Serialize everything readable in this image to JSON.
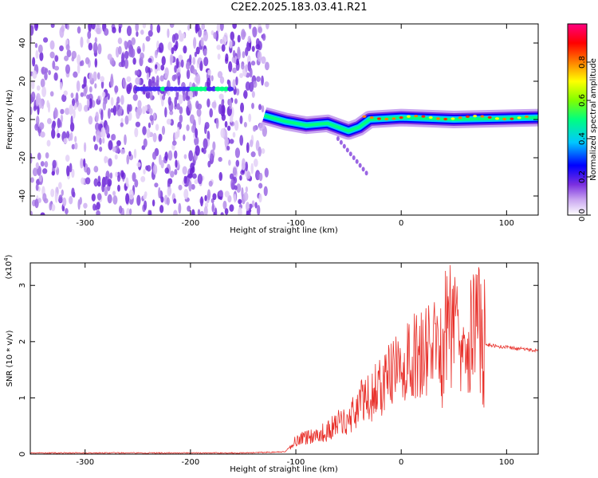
{
  "page": {
    "title": "C2E2.2025.183.03.41.R21"
  },
  "chart_data": [
    {
      "type": "heatmap",
      "xlabel": "Height of straight line (km)",
      "ylabel": "Frequency (Hz)",
      "xlim": [
        -352,
        130
      ],
      "ylim": [
        -50,
        50
      ],
      "x_ticks": [
        -300,
        -200,
        -100,
        0,
        100
      ],
      "y_ticks": [
        -40,
        -20,
        0,
        20,
        40
      ],
      "colorbar": {
        "label": "Normalized spectral amplitude",
        "range": [
          0,
          1
        ],
        "ticks": [
          "0.0",
          "0.2",
          "0.4",
          "0.6",
          "0.8"
        ],
        "colors": [
          "#ffffff",
          "#c9a6f0",
          "#7b2fe0",
          "#0000ff",
          "#00c8ff",
          "#00ff80",
          "#80ff00",
          "#ffff00",
          "#ff8000",
          "#ff0000",
          "#ff0080"
        ]
      },
      "features": {
        "noise_region_x": [
          -352,
          -135
        ],
        "signal_track": [
          {
            "x": -130,
            "y": 2
          },
          {
            "x": -110,
            "y": -1
          },
          {
            "x": -90,
            "y": -3
          },
          {
            "x": -70,
            "y": -2
          },
          {
            "x": -50,
            "y": -6
          },
          {
            "x": -40,
            "y": -4
          },
          {
            "x": -30,
            "y": 0
          },
          {
            "x": 0,
            "y": 1
          },
          {
            "x": 50,
            "y": 0
          },
          {
            "x": 130,
            "y": 1
          }
        ],
        "upper_band": {
          "x": [
            -250,
            -160
          ],
          "y": 16
        }
      }
    },
    {
      "type": "line",
      "xlabel": "Height of straight line (km)",
      "ylabel": "SNR (10 * v/v)",
      "y_multiplier": "(x10",
      "y_multiplier_exp": "4",
      "xlim": [
        -352,
        130
      ],
      "ylim": [
        0,
        3.4
      ],
      "x_ticks": [
        -300,
        -200,
        -100,
        0,
        100
      ],
      "y_ticks": [
        0,
        1,
        2,
        3
      ],
      "color": "#e8302a",
      "series": [
        {
          "x": [
            -352,
            -300,
            -250,
            -200,
            -150,
            -110,
            -100,
            -90,
            -80,
            -70,
            -60,
            -50,
            -40,
            -30,
            -20,
            -10,
            0,
            10,
            20,
            30,
            40,
            50,
            60,
            70,
            80,
            90,
            100,
            110,
            130
          ],
          "values": [
            0.02,
            0.02,
            0.02,
            0.02,
            0.02,
            0.04,
            0.25,
            0.3,
            0.35,
            0.4,
            0.55,
            0.6,
            0.9,
            1.0,
            1.2,
            1.4,
            1.5,
            1.7,
            1.8,
            1.9,
            2.0,
            2.5,
            2.2,
            2.3,
            1.95,
            1.92,
            1.9,
            1.88,
            1.84
          ]
        }
      ]
    }
  ]
}
